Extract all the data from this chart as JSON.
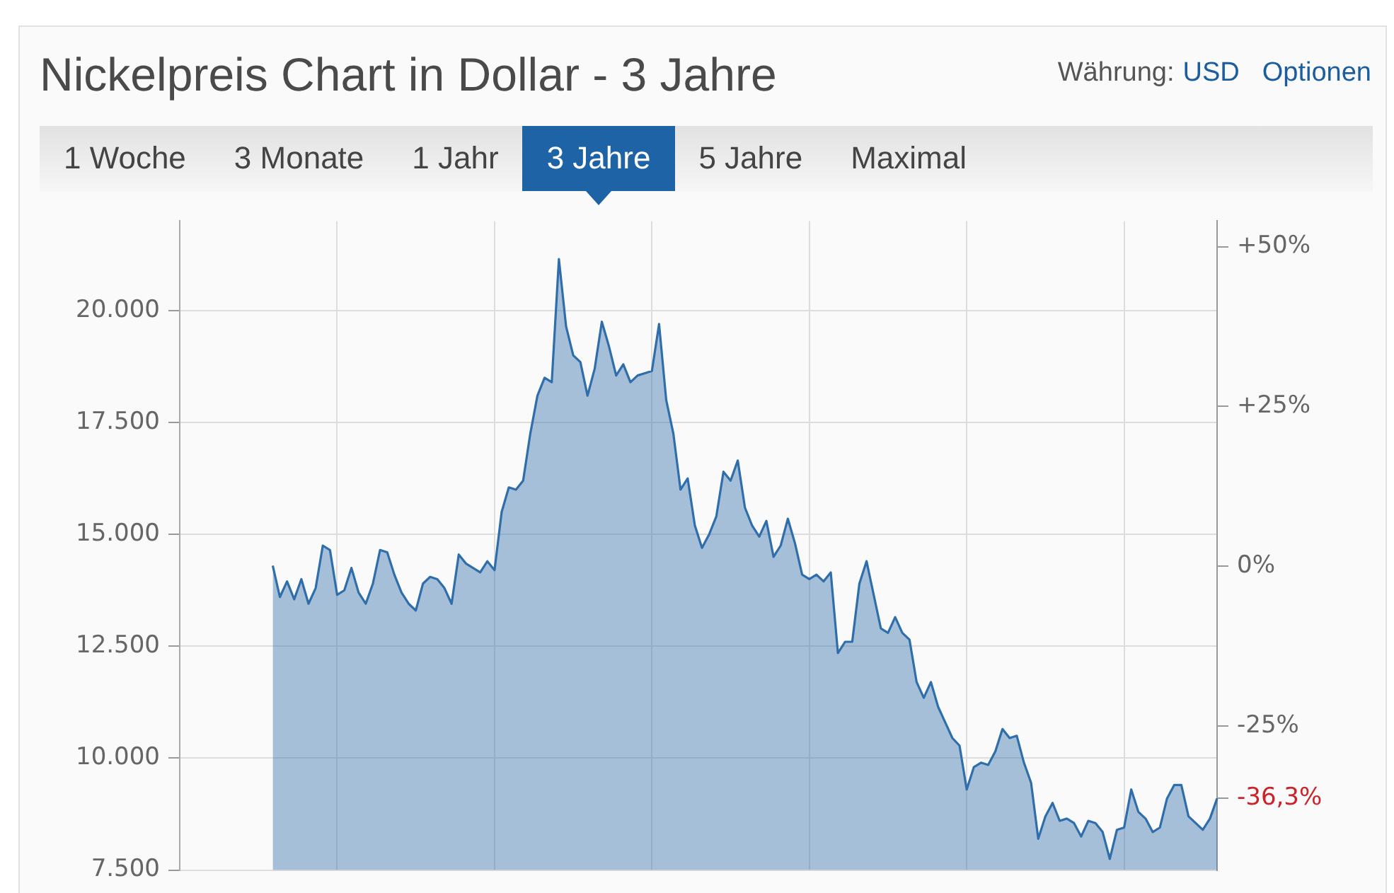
{
  "chart_data": {
    "type": "area",
    "title": "Nickelpreis Chart in Dollar - 3 Jahre",
    "annotations": [
      "Währung:",
      "USD",
      "Optionen",
      "1 Woche",
      "3 Monate",
      "1 Jahr",
      "3 Jahre",
      "5 Jahre",
      "Maximal"
    ],
    "categories": [
      null,
      null,
      null,
      null,
      null,
      null,
      null,
      null,
      null,
      null,
      null,
      null,
      null,
      null,
      null,
      null,
      null,
      null,
      null,
      null,
      null,
      null,
      null,
      null,
      null,
      null,
      null,
      null,
      null,
      null,
      null,
      null,
      null,
      null,
      null,
      null,
      null,
      null,
      null,
      null,
      null,
      null,
      null,
      null,
      null,
      null,
      null,
      null,
      null,
      null,
      null,
      null,
      null,
      null,
      null,
      null,
      null,
      null,
      null,
      null,
      null,
      null,
      null,
      null,
      null,
      null,
      null,
      null,
      null,
      null,
      null,
      null,
      null,
      null,
      null,
      null,
      null,
      null,
      null,
      null,
      null,
      null,
      null,
      null,
      null,
      null,
      null,
      null,
      null,
      null,
      null,
      null,
      null,
      null,
      null,
      null,
      null,
      null,
      null,
      null,
      null,
      null,
      null,
      null,
      null,
      null,
      null,
      null,
      null,
      null,
      null,
      null,
      null,
      null,
      null,
      null,
      null,
      null,
      null,
      null,
      null,
      null,
      null,
      null,
      null,
      null,
      null,
      null,
      null,
      null,
      null,
      null,
      null,
      null,
      null,
      null,
      null,
      null,
      null,
      null,
      null,
      null,
      null,
      null,
      null,
      null
    ],
    "values": [
      null,
      null,
      null,
      null,
      null,
      null,
      null,
      null,
      null,
      null,
      null,
      null,
      null,
      14300,
      13600,
      13950,
      13550,
      14000,
      13450,
      13800,
      14750,
      14650,
      13650,
      13750,
      14250,
      13700,
      13450,
      13900,
      14650,
      14600,
      14100,
      13700,
      13450,
      13300,
      13900,
      14050,
      14000,
      13800,
      13450,
      14550,
      14350,
      14250,
      14150,
      14400,
      14200,
      15500,
      16050,
      16000,
      16200,
      17250,
      18100,
      18500,
      18400,
      21150,
      19650,
      19000,
      18850,
      18100,
      18700,
      19750,
      19200,
      18550,
      18800,
      18400,
      18550,
      18600,
      18650,
      19700,
      18000,
      17250,
      16000,
      16250,
      15200,
      14700,
      15000,
      15400,
      16400,
      16200,
      16650,
      15600,
      15200,
      14950,
      15300,
      14500,
      14750,
      15350,
      14800,
      14100,
      14000,
      14100,
      13950,
      14150,
      12350,
      12600,
      12600,
      13900,
      14400,
      13650,
      12900,
      12800,
      13150,
      12800,
      12650,
      11700,
      11350,
      11700,
      11150,
      10800,
      10450,
      10280,
      9300,
      9800,
      9900,
      9850,
      10150,
      10650,
      10450,
      10500,
      9900,
      9450,
      8200,
      8700,
      9000,
      8600,
      8650,
      8550,
      8250,
      8600,
      8550,
      8350,
      7750,
      8400,
      8450,
      9300,
      8800,
      8650,
      8350,
      8450,
      9100,
      9400,
      9400,
      8700,
      8550,
      8400,
      8650,
      9100
    ],
    "color": "#2f6eaa",
    "ylim": [
      7500,
      22000
    ],
    "yticks": [
      {
        "value": 7500,
        "label": "7.500"
      },
      {
        "value": 10000,
        "label": "10.000"
      },
      {
        "value": 12500,
        "label": "12.500"
      },
      {
        "value": 15000,
        "label": "15.000"
      },
      {
        "value": 17500,
        "label": "17.500"
      },
      {
        "value": 20000,
        "label": "20.000"
      }
    ],
    "y2lim": [
      -47.5,
      54
    ],
    "y2ticks": [
      {
        "value": -36.3,
        "label": "-36,3%"
      },
      {
        "value": -25,
        "label": "-25%"
      },
      {
        "value": 0,
        "label": "0%"
      },
      {
        "value": 25,
        "label": "+25%"
      },
      {
        "value": 50,
        "label": "+50%"
      }
    ],
    "grid": true,
    "tick_labels": "y"
  }
}
